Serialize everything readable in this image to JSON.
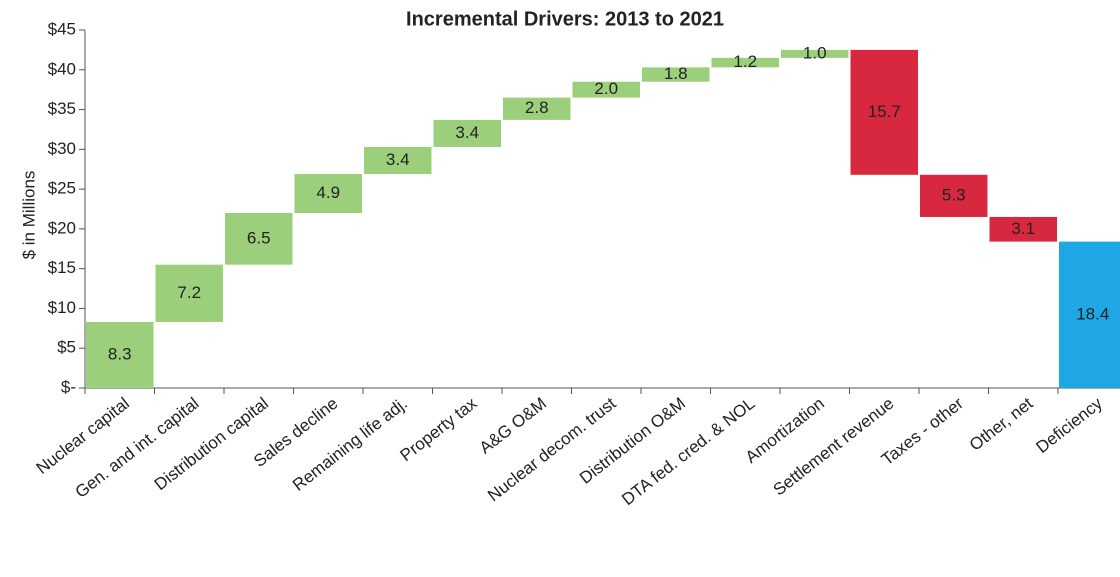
{
  "chart_data": {
    "type": "waterfall",
    "title": "Incremental Drivers:  2013 to 2021",
    "y_label": "$ in Millions",
    "categories": [
      "Nuclear capital",
      "Gen. and int. capital",
      "Distribution capital",
      "Sales decline",
      "Remaining life adj.",
      "Property tax",
      "A&G O&M",
      "Nuclear decom. trust",
      "Distribution O&M",
      "DTA fed. cred. & NOL",
      "Amortization",
      "Settlement revenue",
      "Taxes - other",
      "Other, net",
      "Deficiency"
    ],
    "values": [
      8.3,
      7.2,
      6.5,
      4.9,
      3.4,
      3.4,
      2.8,
      2.0,
      1.8,
      1.2,
      1.0,
      -15.7,
      -5.3,
      -3.1,
      18.4
    ],
    "value_labels": [
      "8.3",
      "7.2",
      "6.5",
      "4.9",
      "3.4",
      "3.4",
      "2.8",
      "2.0",
      "1.8",
      "1.2",
      "1.0",
      "15.7",
      "5.3",
      "3.1",
      "18.4"
    ],
    "last_is_total": true,
    "colors": {
      "increase": "#9ccf7c",
      "decrease": "#d8283f",
      "total": "#1ea7e4"
    },
    "ylim": [
      0,
      45
    ],
    "yticks": [
      {
        "value": 0,
        "label": "$-"
      },
      {
        "value": 5,
        "label": "$5"
      },
      {
        "value": 10,
        "label": "$10"
      },
      {
        "value": 15,
        "label": "$15"
      },
      {
        "value": 20,
        "label": "$20"
      },
      {
        "value": 25,
        "label": "$25"
      },
      {
        "value": 30,
        "label": "$30"
      },
      {
        "value": 35,
        "label": "$35"
      },
      {
        "value": 40,
        "label": "$40"
      },
      {
        "value": 45,
        "label": "$45"
      }
    ],
    "grid": false
  }
}
